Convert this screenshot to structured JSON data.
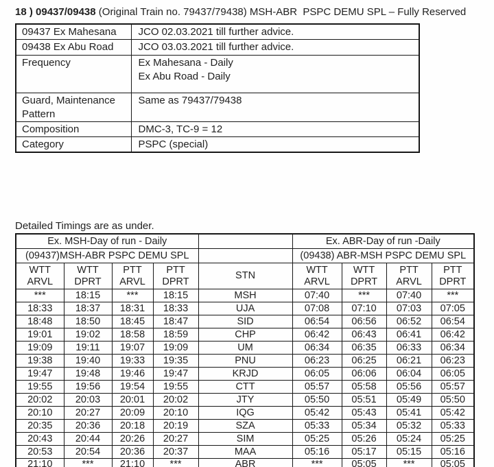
{
  "colors": {
    "background": "#fefefe",
    "text": "#212121",
    "border": "#161616"
  },
  "header": {
    "title_bold": "18 ) 09437/09438",
    "title_rest": " (Original Train no. 79437/79438) MSH-ABR  PSPC DEMU SPL – Fully Reserved"
  },
  "info_table": {
    "rows": [
      {
        "label": "09437 Ex Mahesana",
        "value": "JCO 02.03.2021 till further advice."
      },
      {
        "label": "09438 Ex Abu Road",
        "value": "JCO 03.03.2021 till further advice."
      },
      {
        "label": "Frequency",
        "value": "Ex Mahesana - Daily\nEx Abu Road - Daily"
      },
      {
        "label": "Guard, Maintenance Pattern",
        "value": "Same as 79437/79438"
      },
      {
        "label": "Composition",
        "value": "DMC-3, TC-9 = 12"
      },
      {
        "label": "Category",
        "value": "PSPC (special)"
      }
    ]
  },
  "timings": {
    "heading": "Detailed Timings are as under.",
    "left_group": {
      "day_of_run": "Ex. MSH-Day of run - Daily",
      "train": "(09437)MSH-ABR PSPC DEMU SPL"
    },
    "right_group": {
      "day_of_run": "Ex. ABR-Day of run -Daily",
      "train": "(09438) ABR-MSH PSPC DEMU SPL"
    },
    "stn_label": "STN",
    "col_headers": [
      "WTT\nARVL",
      "WTT\nDPRT",
      "PTT\nARVL",
      "PTT\nDPRT"
    ],
    "rows": [
      {
        "stn": "MSH",
        "left": [
          "***",
          "18:15",
          "***",
          "18:15"
        ],
        "right": [
          "07:40",
          "***",
          "07:40",
          "***"
        ]
      },
      {
        "stn": "UJA",
        "left": [
          "18:33",
          "18:37",
          "18:31",
          "18:33"
        ],
        "right": [
          "07:08",
          "07:10",
          "07:03",
          "07:05"
        ]
      },
      {
        "stn": "SID",
        "left": [
          "18:48",
          "18:50",
          "18:45",
          "18:47"
        ],
        "right": [
          "06:54",
          "06:56",
          "06:52",
          "06:54"
        ]
      },
      {
        "stn": "CHP",
        "left": [
          "19:01",
          "19:02",
          "18:58",
          "18:59"
        ],
        "right": [
          "06:42",
          "06:43",
          "06:41",
          "06:42"
        ]
      },
      {
        "stn": "UM",
        "left": [
          "19:09",
          "19:11",
          "19:07",
          "19:09"
        ],
        "right": [
          "06:34",
          "06:35",
          "06:33",
          "06:34"
        ]
      },
      {
        "stn": "PNU",
        "left": [
          "19:38",
          "19:40",
          "19:33",
          "19:35"
        ],
        "right": [
          "06:23",
          "06:25",
          "06:21",
          "06:23"
        ]
      },
      {
        "stn": "KRJD",
        "left": [
          "19:47",
          "19:48",
          "19:46",
          "19:47"
        ],
        "right": [
          "06:05",
          "06:06",
          "06:04",
          "06:05"
        ]
      },
      {
        "stn": "CTT",
        "left": [
          "19:55",
          "19:56",
          "19:54",
          "19:55"
        ],
        "right": [
          "05:57",
          "05:58",
          "05:56",
          "05:57"
        ]
      },
      {
        "stn": "JTY",
        "left": [
          "20:02",
          "20:03",
          "20:01",
          "20:02"
        ],
        "right": [
          "05:50",
          "05:51",
          "05:49",
          "05:50"
        ]
      },
      {
        "stn": "IQG",
        "left": [
          "20:10",
          "20:27",
          "20:09",
          "20:10"
        ],
        "right": [
          "05:42",
          "05:43",
          "05:41",
          "05:42"
        ]
      },
      {
        "stn": "SZA",
        "left": [
          "20:35",
          "20:36",
          "20:18",
          "20:19"
        ],
        "right": [
          "05:33",
          "05:34",
          "05:32",
          "05:33"
        ]
      },
      {
        "stn": "SIM",
        "left": [
          "20:43",
          "20:44",
          "20:26",
          "20:27"
        ],
        "right": [
          "05:25",
          "05:26",
          "05:24",
          "05:25"
        ]
      },
      {
        "stn": "MAA",
        "left": [
          "20:53",
          "20:54",
          "20:36",
          "20:37"
        ],
        "right": [
          "05:16",
          "05:17",
          "05:15",
          "05:16"
        ]
      },
      {
        "stn": "ABR",
        "left": [
          "21:10",
          "***",
          "21:10",
          "***"
        ],
        "right": [
          "***",
          "05:05",
          "***",
          "05:05"
        ]
      }
    ]
  }
}
